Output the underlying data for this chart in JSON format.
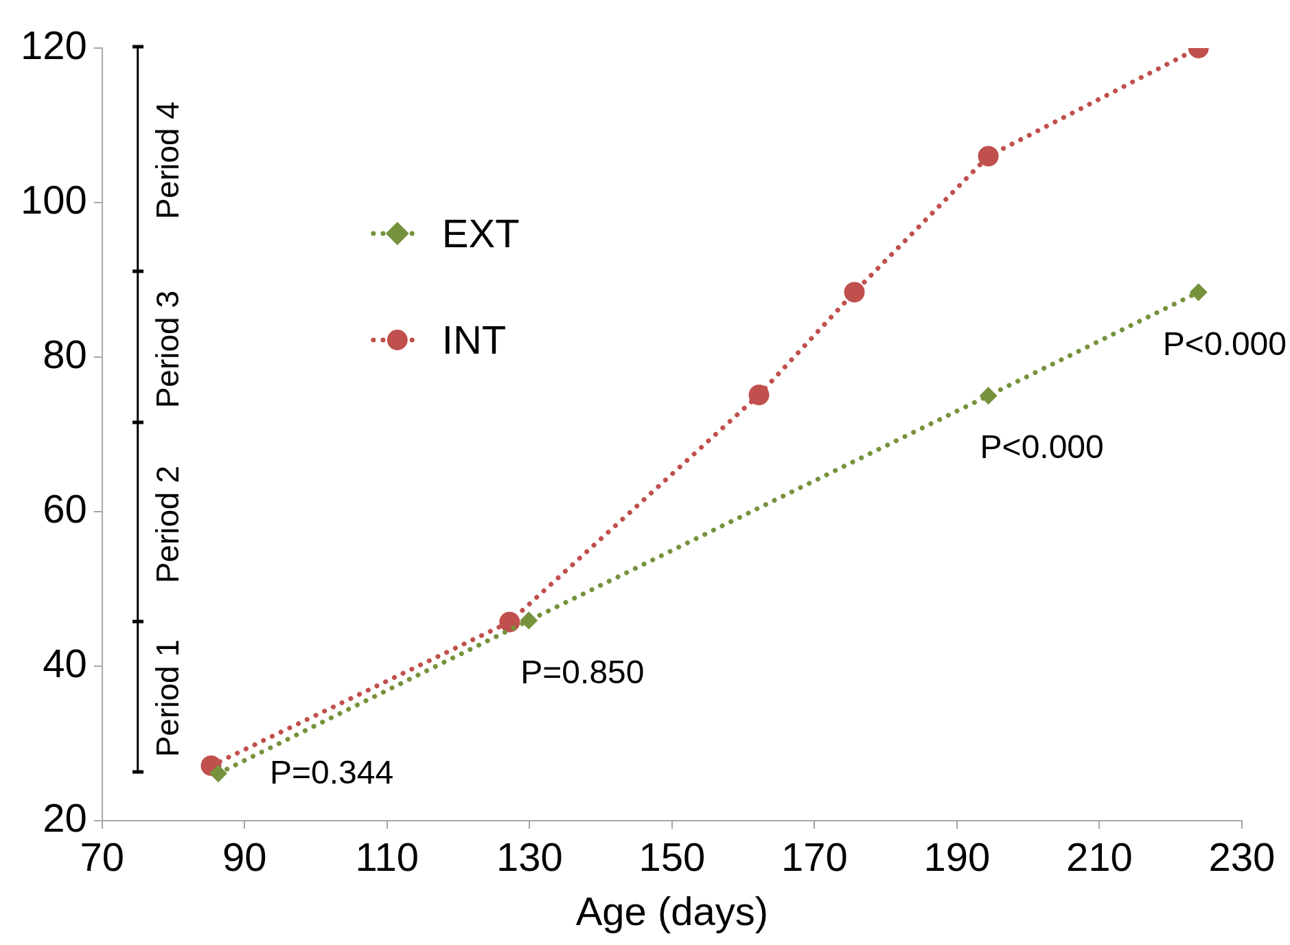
{
  "chart_data": {
    "type": "line",
    "xlabel": "Age (days)",
    "xlim": [
      70,
      230
    ],
    "xticks": [
      70,
      90,
      110,
      130,
      150,
      170,
      190,
      210,
      230
    ],
    "ylim": [
      20,
      120
    ],
    "yticks": [
      20,
      40,
      60,
      80,
      100,
      120
    ],
    "grid": false,
    "legend": "top left",
    "line_style": "dotted",
    "series": [
      {
        "name": "EXT",
        "color": "#76923c",
        "marker": "diamond",
        "x": [
          86.3,
          129.9,
          194.4,
          223.9
        ],
        "values": [
          26.1,
          45.9,
          75.0,
          88.4
        ]
      },
      {
        "name": "INT",
        "color": "#c0504d",
        "marker": "circle",
        "x": [
          85.3,
          127.2,
          162.2,
          175.6,
          194.4,
          223.9
        ],
        "values": [
          27.1,
          45.7,
          75.1,
          88.4,
          106.0,
          120.0
        ]
      },
      {
        "color": "#000000",
        "marker": "none",
        "line_style": "solid",
        "x": [
          75,
          75,
          75,
          75,
          75
        ],
        "values": [
          26.2,
          45.7,
          71.5,
          91.0,
          120.0
        ]
      }
    ],
    "annotations": [
      "Period 1",
      "Period 2",
      "Period 3",
      "Period 4",
      {
        "text": "P=0.344",
        "x": 86.3,
        "y": 26.1
      },
      {
        "text": "P=0.850",
        "x": 129.9,
        "y": 45.9
      },
      {
        "text": "P<0.000",
        "x": 194.4,
        "y": 75.0
      },
      {
        "text": "P<0.000",
        "x": 223.9,
        "y": 88.4
      }
    ]
  }
}
